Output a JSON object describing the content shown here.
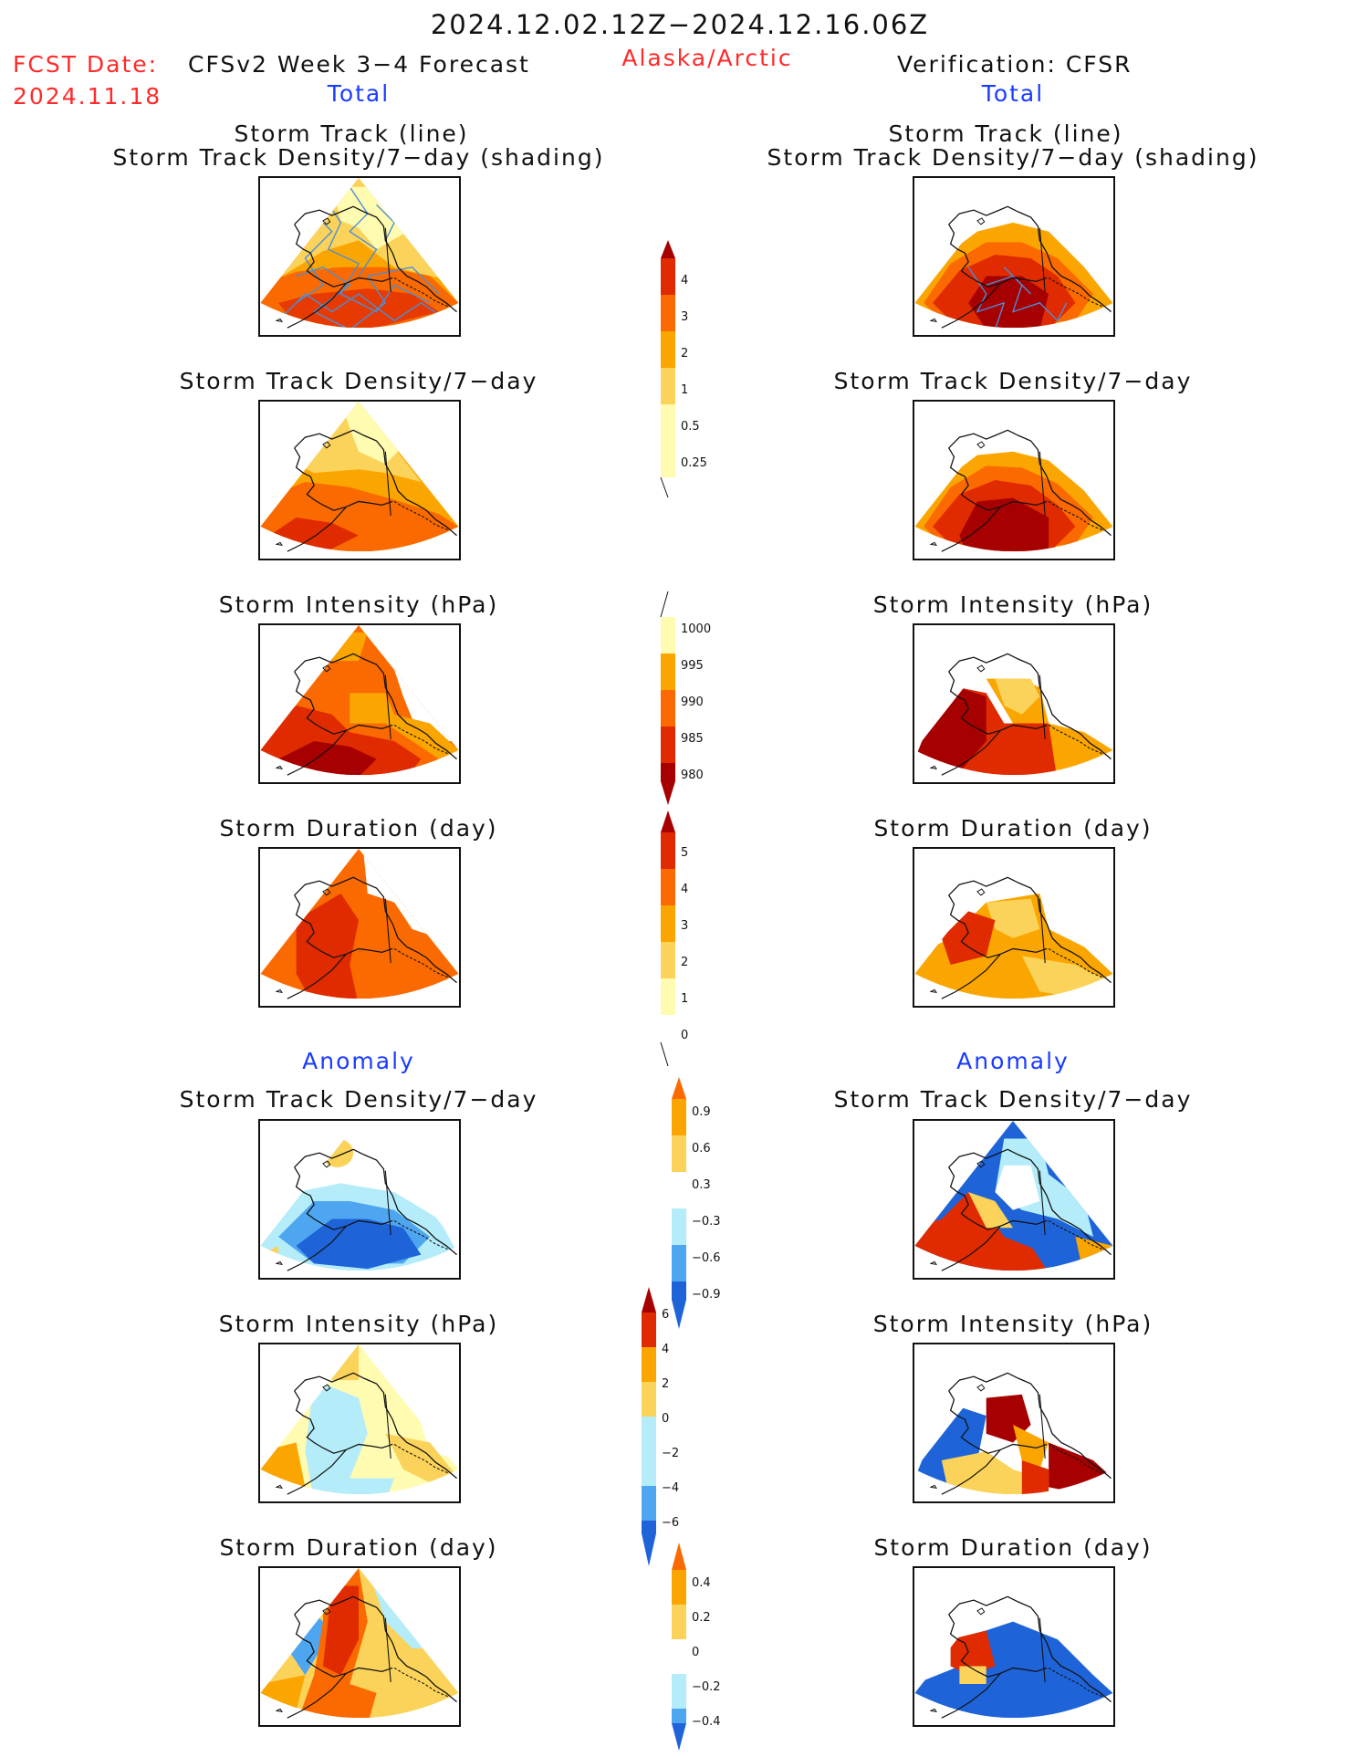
{
  "header": {
    "date_range": "2024.12.02.12Z−2024.12.16.06Z",
    "fcst_label": "FCST Date:",
    "fcst_date": "2024.11.18",
    "forecast_title": "CFSv2 Week 3−4 Forecast",
    "region": "Alaska/Arctic",
    "verification": "Verification: CFSR",
    "left_total": "Total",
    "right_total": "Total"
  },
  "sections": {
    "anomaly_left": "Anomaly",
    "anomaly_right": "Anomaly"
  },
  "panels": {
    "track_line": "Storm Track (line)",
    "track_shading": "Storm Track Density/7−day (shading)",
    "density": "Storm Track Density/7−day",
    "intensity": "Storm Intensity (hPa)",
    "duration": "Storm Duration (day)"
  },
  "colorbars": {
    "density_total": [
      "4",
      "3",
      "2",
      "1",
      "0.5",
      "0.25"
    ],
    "intensity_total": [
      "1000",
      "995",
      "990",
      "985",
      "980"
    ],
    "duration_total": [
      "5",
      "4",
      "3",
      "2",
      "1",
      "0"
    ],
    "density_anom": [
      "0.9",
      "0.6",
      "0.3",
      "−0.3",
      "−0.6",
      "−0.9"
    ],
    "intensity_anom": [
      "6",
      "4",
      "2",
      "0",
      "−2",
      "−4",
      "−6"
    ],
    "duration_anom": [
      "0.4",
      "0.2",
      "0",
      "−0.2",
      "−0.4"
    ]
  },
  "colors": {
    "yellow_pale": "#fffbb0",
    "yellow": "#fbd35a",
    "orange_light": "#fba500",
    "orange": "#fa6a00",
    "red": "#e02b00",
    "dark_red": "#a60000",
    "white": "#ffffff",
    "light_blue": "#b5ecfa",
    "mid_blue": "#4fa6f0",
    "blue": "#1e64d8",
    "track_line": "#4a8fd8"
  }
}
